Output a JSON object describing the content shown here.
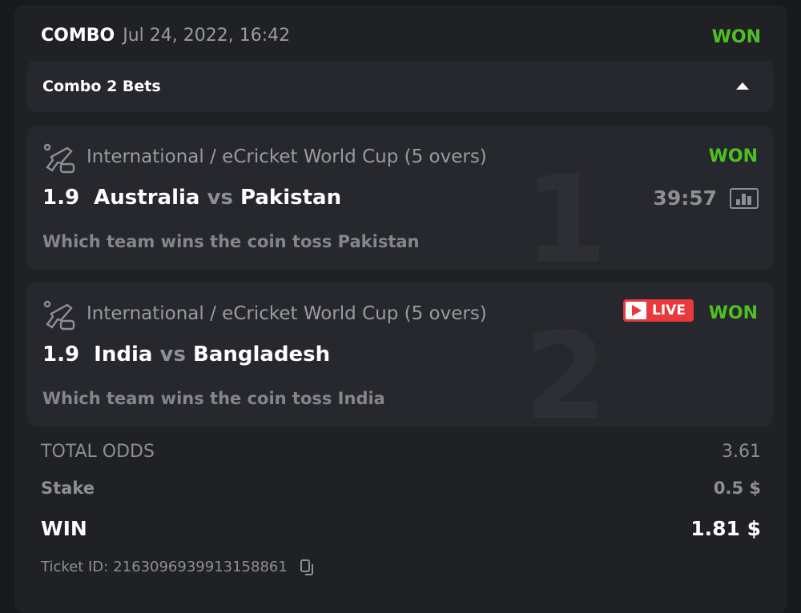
{
  "header": {
    "type": "COMBO",
    "date": "Jul 24, 2022, 16:42",
    "status": "WON"
  },
  "combo": {
    "label": "Combo 2 Bets"
  },
  "bets": [
    {
      "index": "1",
      "league": "International / eCricket World Cup (5 overs)",
      "odds": "1.9",
      "home": "Australia",
      "vs": "vs",
      "away": "Pakistan",
      "market": "Which team wins the coin toss Pakistan",
      "status": "WON",
      "time": "39:57"
    },
    {
      "index": "2",
      "league": "International / eCricket World Cup (5 overs)",
      "odds": "1.9",
      "home": "India",
      "vs": "vs",
      "away": "Bangladesh",
      "market": "Which team wins the coin toss India",
      "status": "WON",
      "live": "LIVE"
    }
  ],
  "summary": {
    "total_odds_label": "TOTAL ODDS",
    "total_odds": "3.61",
    "stake_label": "Stake",
    "stake": "0.5 $",
    "win_label": "WIN",
    "win": "1.81 $",
    "ticket_label": "Ticket ID:",
    "ticket_id": "2163096939913158861"
  },
  "colors": {
    "won": "#4fc021",
    "live": "#e8393c"
  }
}
